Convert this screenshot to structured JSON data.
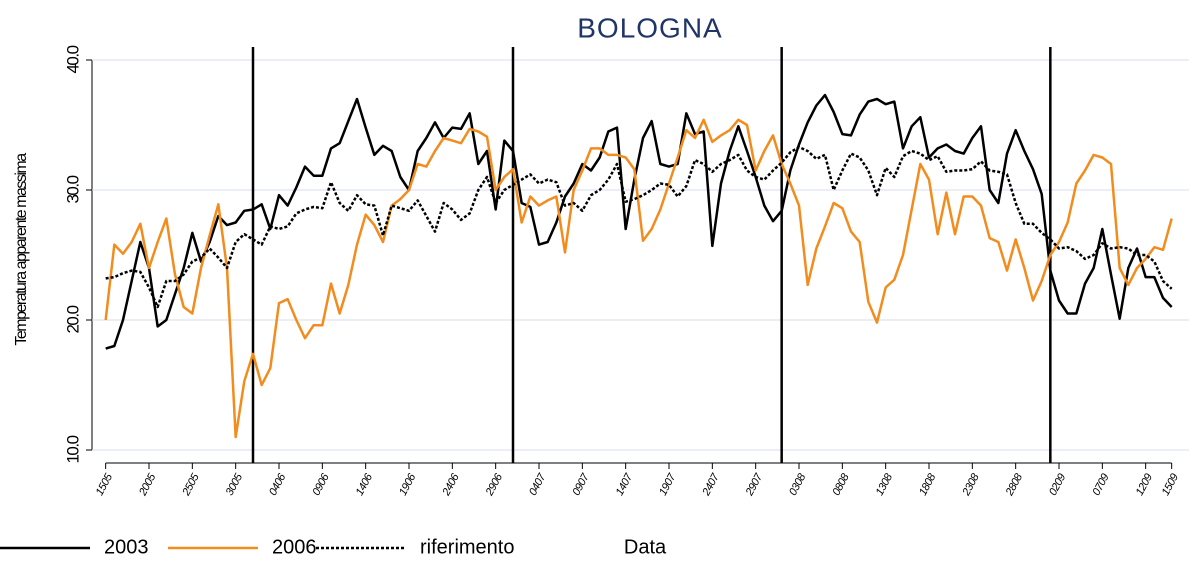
{
  "chart_data": {
    "type": "line",
    "title": "BOLOGNA",
    "x_label": "Data",
    "y_label": "Temperatura apparente massima",
    "x": [
      0,
      1,
      2,
      3,
      4,
      5,
      6,
      7,
      8,
      9,
      10,
      11,
      12,
      13,
      14,
      15,
      16,
      17,
      18,
      19,
      20,
      21,
      22,
      23,
      24,
      25,
      26,
      27,
      28,
      29,
      30,
      31,
      32,
      33,
      34,
      35,
      36,
      37,
      38,
      39,
      40,
      41,
      42,
      43,
      44,
      45,
      46,
      47,
      48,
      49,
      50,
      51,
      52,
      53,
      54,
      55,
      56,
      57,
      58,
      59,
      60,
      61,
      62,
      63,
      64,
      65,
      66,
      67,
      68,
      69,
      70,
      71,
      72,
      73,
      74,
      75,
      76,
      77,
      78,
      79,
      80,
      81,
      82,
      83,
      84,
      85,
      86,
      87,
      88,
      89,
      90,
      91,
      92,
      93,
      94,
      95,
      96,
      97,
      98,
      99,
      100,
      101,
      102,
      103,
      104,
      105,
      106,
      107,
      108,
      109,
      110,
      111,
      112,
      113,
      114,
      115,
      116,
      117,
      118,
      119,
      120,
      121,
      122,
      123
    ],
    "series": [
      {
        "name": "2003",
        "color": "#000000",
        "dash": "solid",
        "values": [
          17.8,
          18,
          20,
          23,
          26,
          24,
          19.5,
          20,
          22,
          24,
          26.7,
          24.5,
          26,
          28,
          27.3,
          27.5,
          28.4,
          28.5,
          28.9,
          27,
          29.6,
          28.8,
          30.2,
          31.8,
          31.1,
          31.1,
          33.2,
          33.6,
          35.3,
          37,
          34.8,
          32.7,
          33.4,
          33,
          31,
          30,
          33,
          34,
          35.2,
          34,
          34.8,
          34.7,
          35.9,
          32,
          33,
          28.5,
          33.8,
          33,
          29,
          28.7,
          25.8,
          26,
          27.5,
          29.5,
          30.5,
          32,
          31.5,
          32.5,
          34.5,
          34.8,
          27,
          30.8,
          34,
          35.3,
          32,
          31.8,
          32,
          35.9,
          34.3,
          34.5,
          25.7,
          30.5,
          33,
          34.9,
          33,
          31,
          28.8,
          27.6,
          28.4,
          31.5,
          33.5,
          35.2,
          36.5,
          37.3,
          36,
          34.3,
          34.2,
          35.8,
          36.8,
          37,
          36.6,
          36.8,
          33.2,
          34.9,
          35.6,
          32.5,
          33.2,
          33.5,
          33,
          32.8,
          34,
          34.9,
          30,
          29,
          32.8,
          34.6,
          33,
          31.6,
          29.7,
          23.8,
          21.5,
          20.5,
          20.5,
          22.8,
          24,
          27,
          23.5,
          20.1,
          24,
          25.5,
          23.3,
          23.3,
          21.7,
          21
        ]
      },
      {
        "name": "2006",
        "color": "#f28c1e",
        "dash": "solid",
        "values": [
          20,
          25.8,
          25.1,
          26,
          27.4,
          24,
          26,
          27.8,
          23.5,
          21,
          20.5,
          24,
          26.5,
          28.9,
          24,
          11,
          15.3,
          17.4,
          15,
          16.3,
          21.3,
          21.6,
          20,
          18.6,
          19.6,
          19.6,
          22.8,
          20.5,
          22.7,
          25.8,
          28.1,
          27.3,
          26,
          28.8,
          29.3,
          30,
          32,
          31.8,
          33,
          34,
          33.8,
          33.6,
          34.7,
          34.5,
          34.1,
          30,
          31,
          31.6,
          27.5,
          29.5,
          28.8,
          29.2,
          29.5,
          25.2,
          30,
          31.5,
          33.2,
          33.2,
          32.7,
          32.7,
          32.5,
          31.6,
          26.1,
          27,
          28.5,
          30.5,
          32.5,
          34.6,
          34,
          35.4,
          33.7,
          34.2,
          34.6,
          35.4,
          35,
          31.5,
          33,
          34.2,
          32,
          30.5,
          28.8,
          22.7,
          25.5,
          27.2,
          29,
          28.6,
          26.8,
          26,
          21.4,
          19.8,
          22.5,
          23.1,
          25,
          28.5,
          32,
          30.8,
          26.6,
          29.8,
          26.6,
          29.5,
          29.5,
          28.8,
          26.3,
          26,
          23.8,
          26.2,
          24,
          21.5,
          23,
          25,
          26,
          27.5,
          30.5,
          31.5,
          32.7,
          32.5,
          32,
          24,
          22.7,
          24,
          24.7,
          25.6,
          25.4,
          27.8
        ]
      },
      {
        "name": "riferimento",
        "color": "#000000",
        "dash": "dotted",
        "values": [
          23.2,
          23.3,
          23.6,
          23.8,
          23.7,
          22.5,
          21,
          23,
          23,
          23.5,
          24.5,
          24.8,
          25.5,
          24.8,
          24,
          26,
          26.6,
          26.2,
          25.8,
          27.2,
          27,
          27.2,
          28.2,
          28.5,
          28.7,
          28.6,
          30.6,
          29,
          28.4,
          29.6,
          28.9,
          28.8,
          26.5,
          28.8,
          28.6,
          28.4,
          29.2,
          28,
          26.8,
          29,
          28.5,
          27.7,
          28.2,
          30,
          31,
          29,
          30,
          30.4,
          30.8,
          31.2,
          30.5,
          30.8,
          30.6,
          28.8,
          29,
          28.4,
          29.6,
          30,
          30.8,
          32,
          29.1,
          29.3,
          29.6,
          30,
          30.5,
          30.4,
          29.5,
          30.3,
          32.3,
          32,
          31.4,
          32,
          32.3,
          32.7,
          31.5,
          31,
          30.8,
          31.5,
          32.1,
          32.9,
          33.3,
          33,
          32.4,
          32.7,
          30,
          31.5,
          32.8,
          32.5,
          31.5,
          29.6,
          31.7,
          31,
          32.6,
          33,
          32.8,
          32.3,
          32.6,
          31.4,
          31.5,
          31.5,
          31.6,
          32.2,
          31.5,
          31.4,
          31.2,
          29,
          27.4,
          27.4,
          26.7,
          26.2,
          25.5,
          25.6,
          25.3,
          24.7,
          25,
          25.9,
          25.5,
          25.6,
          25.5,
          25,
          25,
          24.5,
          23,
          22.4
        ]
      }
    ],
    "xlim": [
      -1,
      125
    ],
    "xticks": [
      {
        "value": 0,
        "label": "1505"
      },
      {
        "value": 5,
        "label": "2005"
      },
      {
        "value": 10,
        "label": "2505"
      },
      {
        "value": 15,
        "label": "3005"
      },
      {
        "value": 20,
        "label": "0406"
      },
      {
        "value": 25,
        "label": "0906"
      },
      {
        "value": 30,
        "label": "1406"
      },
      {
        "value": 35,
        "label": "1906"
      },
      {
        "value": 40,
        "label": "2406"
      },
      {
        "value": 45,
        "label": "2906"
      },
      {
        "value": 50,
        "label": "0407"
      },
      {
        "value": 55,
        "label": "0907"
      },
      {
        "value": 60,
        "label": "1407"
      },
      {
        "value": 65,
        "label": "1907"
      },
      {
        "value": 70,
        "label": "2407"
      },
      {
        "value": 75,
        "label": "2907"
      },
      {
        "value": 80,
        "label": "0308"
      },
      {
        "value": 85,
        "label": "0808"
      },
      {
        "value": 90,
        "label": "1308"
      },
      {
        "value": 95,
        "label": "1808"
      },
      {
        "value": 100,
        "label": "2308"
      },
      {
        "value": 105,
        "label": "2808"
      },
      {
        "value": 110,
        "label": "0209"
      },
      {
        "value": 115,
        "label": "0709"
      },
      {
        "value": 120,
        "label": "1209"
      },
      {
        "value": 123,
        "label": "1509"
      }
    ],
    "ylim": [
      9,
      41
    ],
    "yticks": [
      {
        "value": 10,
        "label": "10.0"
      },
      {
        "value": 20,
        "label": "20.0"
      },
      {
        "value": 30,
        "label": "30.0"
      },
      {
        "value": 40,
        "label": "40.0"
      }
    ],
    "vlines": [
      17,
      47,
      78,
      109
    ],
    "grid": true,
    "legend": "bottom"
  }
}
